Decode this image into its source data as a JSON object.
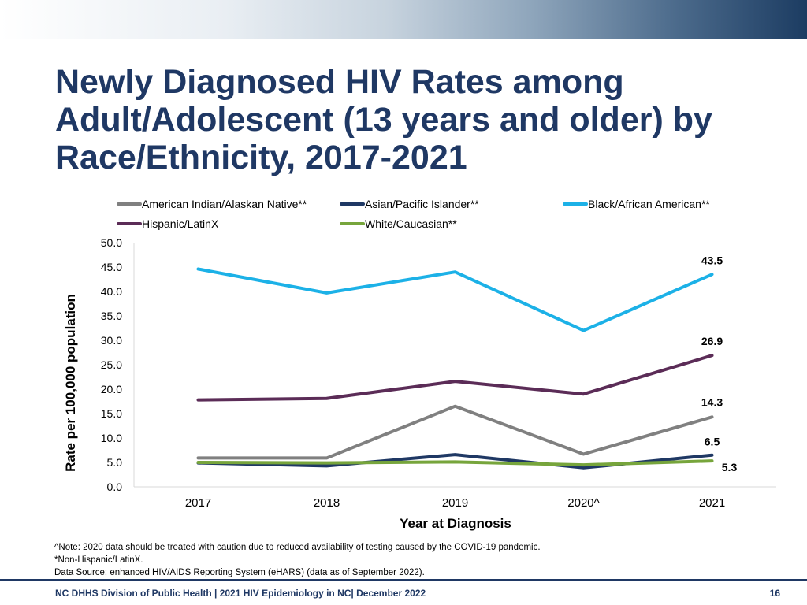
{
  "title_lines": [
    "Newly Diagnosed HIV Rates among",
    "Adult/Adolescent (13 years and older) by",
    "Race/Ethnicity, 2017-2021"
  ],
  "chart_data": {
    "type": "line",
    "title": "Newly Diagnosed HIV Rates among Adult/Adolescent (13 years and older) by Race/Ethnicity, 2017-2021",
    "xlabel": "Year at Diagnosis",
    "ylabel": "Rate per 100,000 population",
    "categories": [
      "2017",
      "2018",
      "2019",
      "2020^",
      "2021"
    ],
    "ylim": [
      0,
      50
    ],
    "ytick_labels": [
      "0.0",
      "5.0",
      "10.0",
      "15.0",
      "20.0",
      "25.0",
      "30.0",
      "35.0",
      "40.0",
      "45.0",
      "50.0"
    ],
    "grid": false,
    "legend_position": "top",
    "series": [
      {
        "name": "American Indian/Alaskan Native**",
        "color": "#808080",
        "values": [
          5.9,
          5.9,
          16.5,
          6.7,
          14.3
        ],
        "end_label": "14.3"
      },
      {
        "name": "Asian/Pacific Islander**",
        "color": "#1f3864",
        "values": [
          4.9,
          4.3,
          6.6,
          3.9,
          6.5
        ],
        "end_label": "6.5"
      },
      {
        "name": "Black/African American**",
        "color": "#1cb1e7",
        "values": [
          44.6,
          39.7,
          44.0,
          32.0,
          43.5
        ],
        "end_label": "43.5"
      },
      {
        "name": "Hispanic/LatinX",
        "color": "#5b2c57",
        "values": [
          17.8,
          18.1,
          21.6,
          19.0,
          26.9
        ],
        "end_label": "26.9"
      },
      {
        "name": "White/Caucasian**",
        "color": "#77a53c",
        "values": [
          5.0,
          4.9,
          5.1,
          4.5,
          5.3
        ],
        "end_label": "5.3"
      }
    ]
  },
  "notes": [
    "^Note: 2020 data should be treated with caution due to reduced availability  of testing caused by the COVID-19 pandemic.",
    "*Non-Hispanic/LatinX.",
    "Data Source: enhanced HIV/AIDS Reporting System (eHARS) (data as of September 2022)."
  ],
  "footer": {
    "left": "NC DHHS Division of Public Health | 2021 HIV Epidemiology in NC| December 2022",
    "page_number": "16"
  }
}
